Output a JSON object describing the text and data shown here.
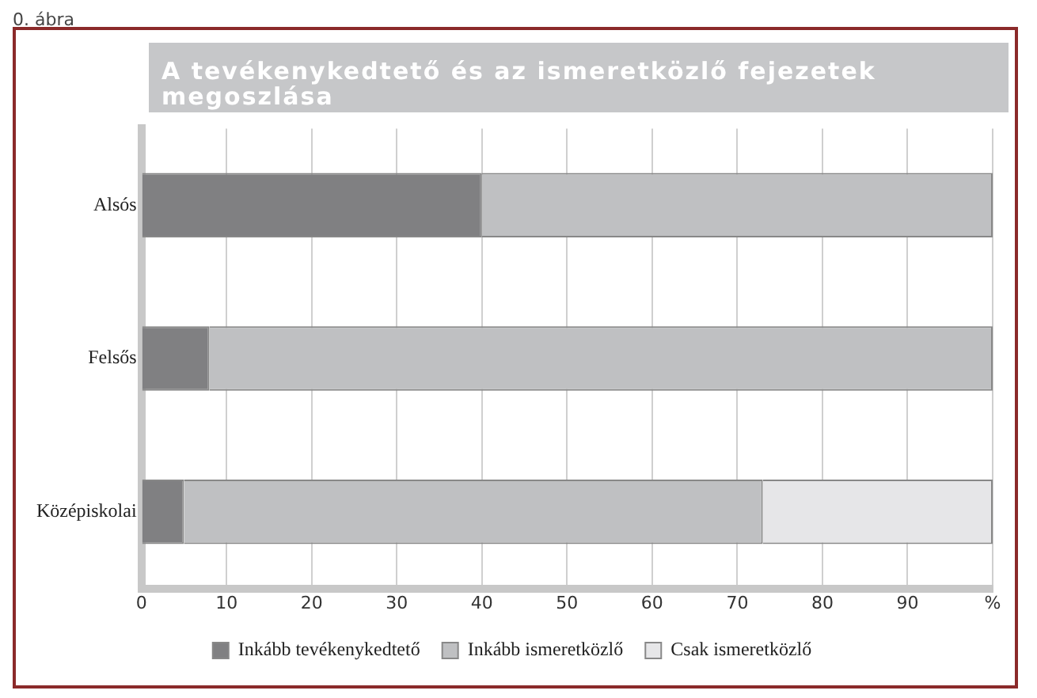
{
  "chart_data": {
    "type": "bar",
    "orientation": "horizontal",
    "stacked": true,
    "title": "A tevékenykedtető és az ismeretközlő fejezetek megoszlása",
    "annotations": [
      "0. ábra"
    ],
    "categories": [
      "Alsós",
      "Felsős",
      "Középiskolai"
    ],
    "series": [
      {
        "name": "Inkább tevékenykedtető",
        "color": "#808082",
        "values": [
          40,
          8,
          5
        ]
      },
      {
        "name": "Inkább ismeretközlő",
        "color": "#bfc0c2",
        "values": [
          60,
          92,
          68
        ]
      },
      {
        "name": "Csak ismeretközlő",
        "color": "#e6e6e8",
        "values": [
          0,
          0,
          27
        ]
      }
    ],
    "xlim": [
      0,
      100
    ],
    "xticks": [
      0,
      10,
      20,
      30,
      40,
      50,
      60,
      70,
      80,
      90,
      {
        "value": 100,
        "label": "%"
      }
    ],
    "grid": "x",
    "legend": "bottom"
  }
}
